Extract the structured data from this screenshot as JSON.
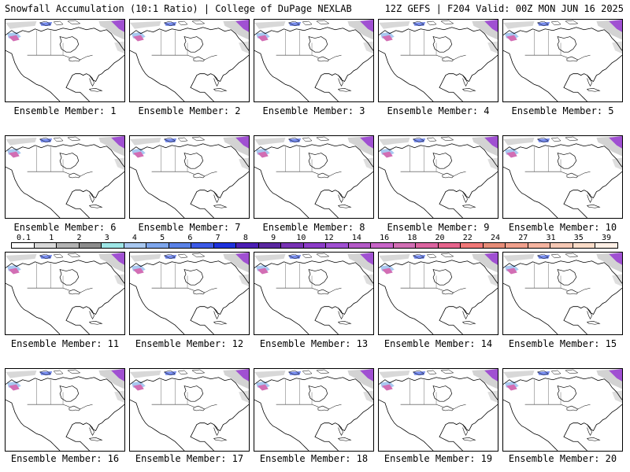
{
  "header": {
    "left": "Snowfall Accumulation (10:1 Ratio) | College of DuPage NEXLAB",
    "right": "12Z GEFS | F204 Valid: 00Z MON JUN 16 2025"
  },
  "panels": [
    {
      "label": "Ensemble Member: 1"
    },
    {
      "label": "Ensemble Member: 2"
    },
    {
      "label": "Ensemble Member: 3"
    },
    {
      "label": "Ensemble Member: 4"
    },
    {
      "label": "Ensemble Member: 5"
    },
    {
      "label": "Ensemble Member: 6"
    },
    {
      "label": "Ensemble Member: 7"
    },
    {
      "label": "Ensemble Member: 8"
    },
    {
      "label": "Ensemble Member: 9"
    },
    {
      "label": "Ensemble Member: 10"
    },
    {
      "label": "Ensemble Member: 11"
    },
    {
      "label": "Ensemble Member: 12"
    },
    {
      "label": "Ensemble Member: 13"
    },
    {
      "label": "Ensemble Member: 14"
    },
    {
      "label": "Ensemble Member: 15"
    },
    {
      "label": "Ensemble Member: 16"
    },
    {
      "label": "Ensemble Member: 17"
    },
    {
      "label": "Ensemble Member: 18"
    },
    {
      "label": "Ensemble Member: 19"
    },
    {
      "label": "Ensemble Member: 20"
    }
  ],
  "scale": {
    "labels": [
      "0.1",
      "1",
      "2",
      "3",
      "4",
      "5",
      "6",
      "7",
      "8",
      "9",
      "10",
      "12",
      "14",
      "16",
      "18",
      "20",
      "22",
      "24",
      "27",
      "31",
      "35",
      "39"
    ],
    "colors": [
      "#ffffff",
      "#d9d9d9",
      "#b3b3b3",
      "#8c8c8c",
      "#9ee6e6",
      "#a8c8f0",
      "#7ea6ec",
      "#5a82e6",
      "#3c5ae6",
      "#1e32dc",
      "#4b1eb4",
      "#5a28a0",
      "#7832b4",
      "#8c3cc8",
      "#a050d2",
      "#b45ac8",
      "#c864c8",
      "#d26eb4",
      "#dc64a0",
      "#e6648c",
      "#f07878",
      "#e68c78",
      "#f0a08c",
      "#f5b4a0",
      "#f5c8b4",
      "#fadcc8",
      "#fff0e6"
    ]
  },
  "colors": {
    "snow_gray": "#c8c8c8",
    "snow_light": "#a8c8f0",
    "snow_blue": "#3c5ae6",
    "snow_purple": "#a050d2",
    "snow_magenta": "#d26eb4"
  }
}
